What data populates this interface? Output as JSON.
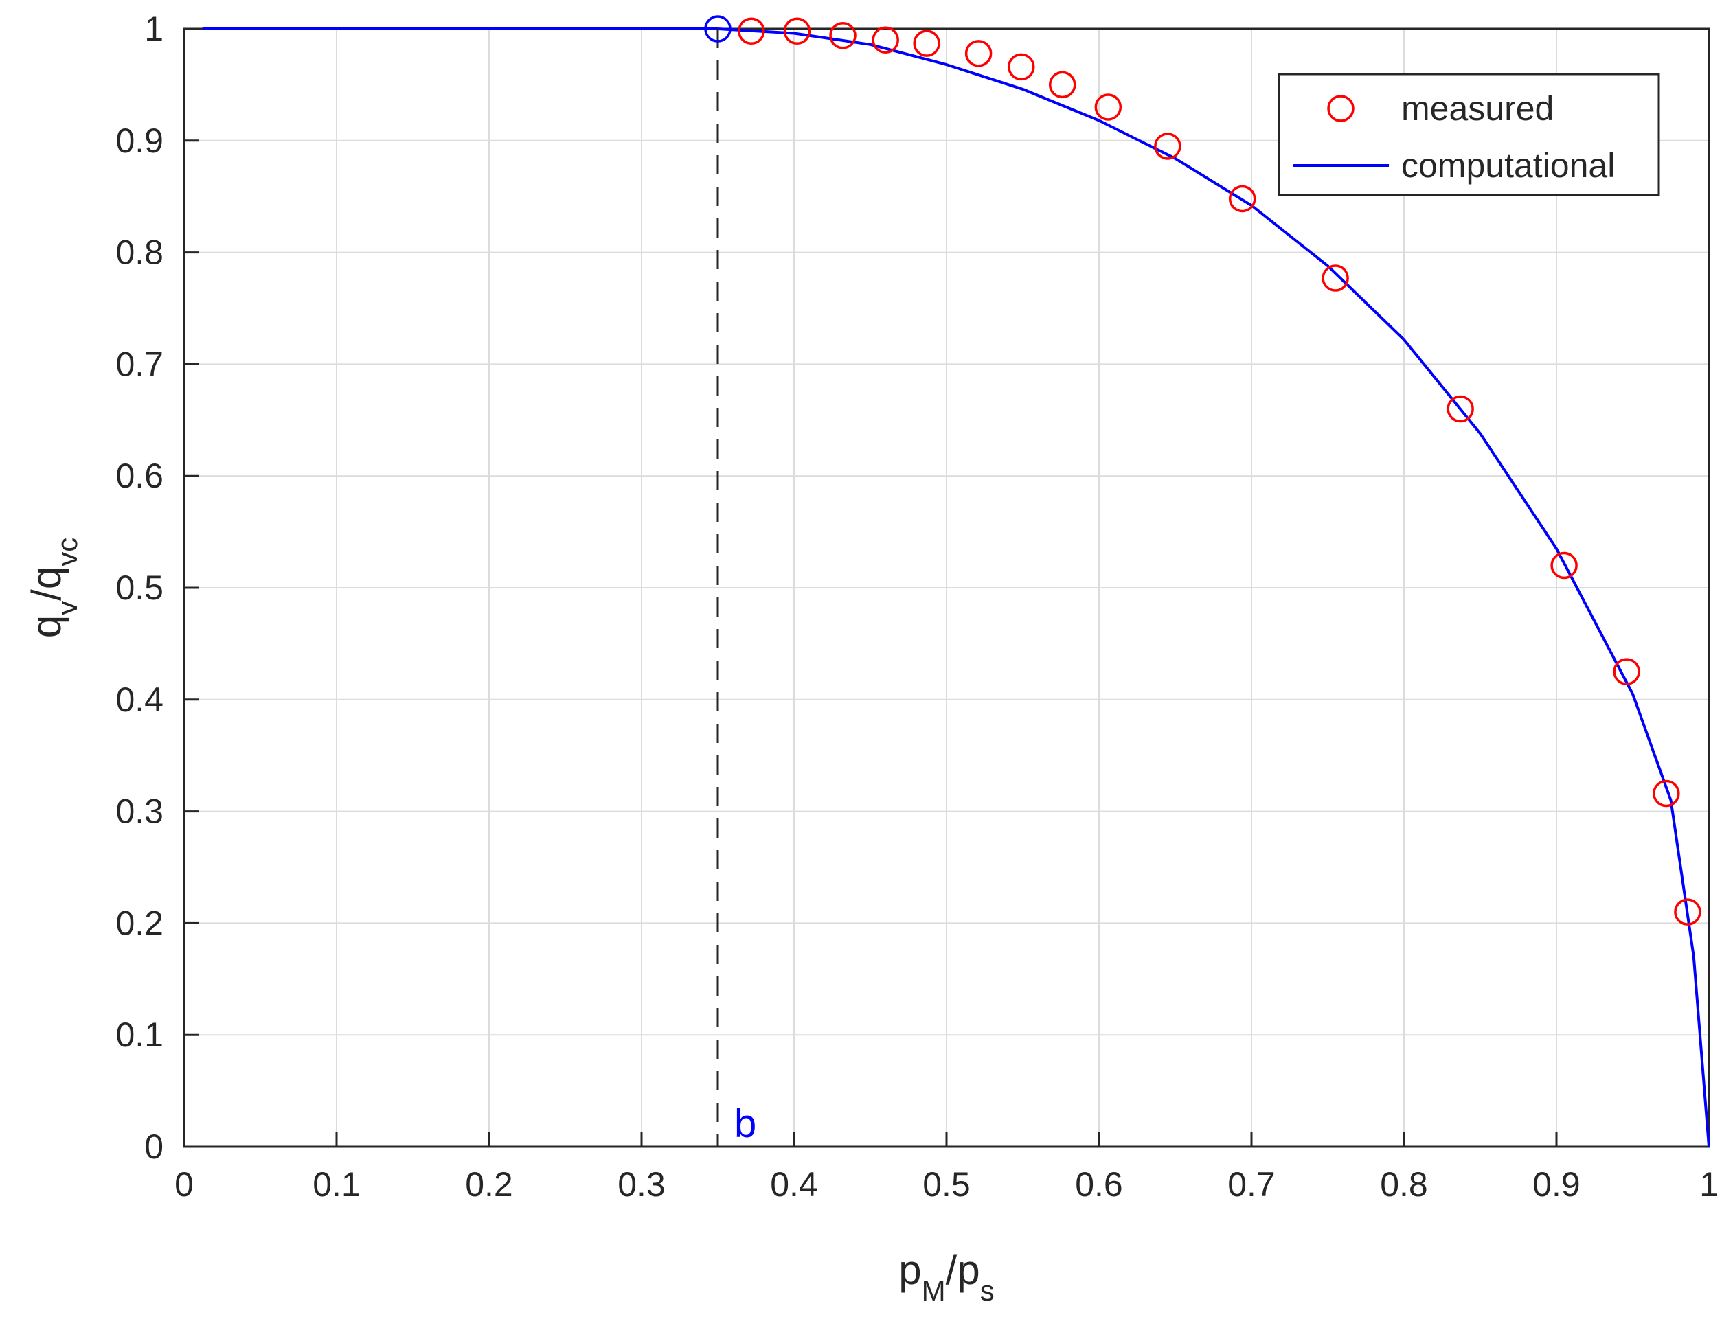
{
  "chart_data": {
    "type": "line",
    "title": "",
    "xlabel": {
      "main": "p",
      "sub1": "M",
      "sep": "/p",
      "sub2": "s"
    },
    "ylabel": {
      "main": "q",
      "sub1": "v",
      "sep": "/q",
      "sub2": "vc"
    },
    "xlim": [
      0,
      1
    ],
    "ylim": [
      0,
      1
    ],
    "xticks": [
      0,
      0.1,
      0.2,
      0.3,
      0.4,
      0.5,
      0.6,
      0.7,
      0.8,
      0.9,
      1
    ],
    "xtick_labels": [
      "0",
      "0.1",
      "0.2",
      "0.3",
      "0.4",
      "0.5",
      "0.6",
      "0.7",
      "0.8",
      "0.9",
      "1"
    ],
    "yticks": [
      0,
      0.1,
      0.2,
      0.3,
      0.4,
      0.5,
      0.6,
      0.7,
      0.8,
      0.9,
      1
    ],
    "ytick_labels": [
      "0",
      "0.1",
      "0.2",
      "0.3",
      "0.4",
      "0.5",
      "0.6",
      "0.7",
      "0.8",
      "0.9",
      "1"
    ],
    "grid": true,
    "legend_position": "top-right",
    "series": [
      {
        "name": "measured",
        "style": "markers",
        "marker": "circle-open",
        "color": "#ff0000",
        "x": [
          0.372,
          0.402,
          0.432,
          0.46,
          0.487,
          0.521,
          0.549,
          0.576,
          0.606,
          0.645,
          0.694,
          0.755,
          0.837,
          0.905,
          0.946,
          0.972,
          0.986
        ],
        "y": [
          0.998,
          0.998,
          0.994,
          0.99,
          0.987,
          0.978,
          0.966,
          0.95,
          0.93,
          0.895,
          0.848,
          0.777,
          0.66,
          0.52,
          0.425,
          0.316,
          0.21
        ]
      },
      {
        "name": "computational",
        "style": "line",
        "color": "#0000ff",
        "x": [
          0.012,
          0.35,
          0.4,
          0.45,
          0.5,
          0.55,
          0.6,
          0.65,
          0.7,
          0.75,
          0.8,
          0.85,
          0.9,
          0.95,
          0.975,
          0.99,
          1.0
        ],
        "y": [
          1.0,
          1.0,
          0.996,
          0.986,
          0.968,
          0.946,
          0.918,
          0.884,
          0.842,
          0.788,
          0.722,
          0.638,
          0.535,
          0.405,
          0.31,
          0.17,
          0.0
        ]
      }
    ],
    "annotations": [
      {
        "text": "b",
        "x": 0.35,
        "y": 0.0,
        "color": "#0000ff",
        "marker_at": [
          0.35,
          1.0
        ],
        "dashed_line_x": 0.35
      }
    ]
  }
}
